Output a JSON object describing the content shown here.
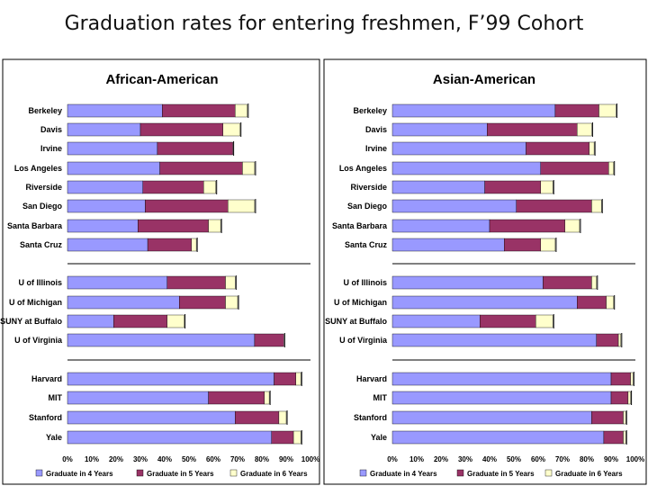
{
  "slide_title": "Graduation rates for entering freshmen, F’99 Cohort",
  "colors": {
    "four_year": "#9999ff",
    "five_year": "#993366",
    "six_year": "#ffffcc"
  },
  "chart_data": [
    {
      "type": "bar",
      "orientation": "horizontal",
      "stacked": true,
      "title": "African-American",
      "xlim": [
        0,
        100
      ],
      "x_ticks": [
        "0%",
        "10%",
        "20%",
        "30%",
        "40%",
        "50%",
        "60%",
        "70%",
        "80%",
        "90%",
        "100%"
      ],
      "legend_position": "bottom",
      "categories": [
        "Berkeley",
        "Davis",
        "Irvine",
        "Los Angeles",
        "Riverside",
        "San Diego",
        "Santa Barbara",
        "Santa Cruz",
        "U of Illinois",
        "U of Michigan",
        "SUNY at Buffalo",
        "U of Virginia",
        "Harvard",
        "MIT",
        "Stanford",
        "Yale"
      ],
      "series": [
        {
          "name": "Graduate in 4 Years",
          "values": [
            39,
            30,
            37,
            38,
            31,
            32,
            29,
            33,
            41,
            46,
            19,
            77,
            85,
            58,
            69,
            84
          ]
        },
        {
          "name": "Graduate in 5 Years",
          "values": [
            30,
            34,
            31,
            34,
            25,
            34,
            29,
            18,
            24,
            19,
            22,
            12,
            9,
            23,
            18,
            9
          ]
        },
        {
          "name": "Graduate in 6 Years",
          "values": [
            5,
            7,
            0,
            5,
            5,
            11,
            5,
            2,
            4,
            5,
            7,
            0,
            2,
            2,
            3,
            3
          ]
        }
      ]
    },
    {
      "type": "bar",
      "orientation": "horizontal",
      "stacked": true,
      "title": "Asian-American",
      "xlim": [
        0,
        100
      ],
      "x_ticks": [
        "0%",
        "10%",
        "20%",
        "30%",
        "40%",
        "50%",
        "60%",
        "70%",
        "80%",
        "90%",
        "100%"
      ],
      "legend_position": "bottom",
      "categories": [
        "Berkeley",
        "Davis",
        "Irvine",
        "Los Angeles",
        "Riverside",
        "San Diego",
        "Santa Barbara",
        "Santa Cruz",
        "U of Illinois",
        "U of Michigan",
        "SUNY at Buffalo",
        "U of Virginia",
        "Harvard",
        "MIT",
        "Stanford",
        "Yale"
      ],
      "series": [
        {
          "name": "Graduate in 4 Years",
          "values": [
            67,
            39,
            55,
            61,
            38,
            51,
            40,
            46,
            62,
            76,
            36,
            84,
            90,
            90,
            82,
            87
          ]
        },
        {
          "name": "Graduate in 5 Years",
          "values": [
            18,
            37,
            26,
            28,
            23,
            31,
            31,
            15,
            20,
            12,
            23,
            9,
            8,
            7,
            13,
            8
          ]
        },
        {
          "name": "Graduate in 6 Years",
          "values": [
            7,
            6,
            2,
            2,
            5,
            4,
            6,
            6,
            2,
            3,
            7,
            1,
            1,
            1,
            1,
            1
          ]
        }
      ]
    }
  ]
}
